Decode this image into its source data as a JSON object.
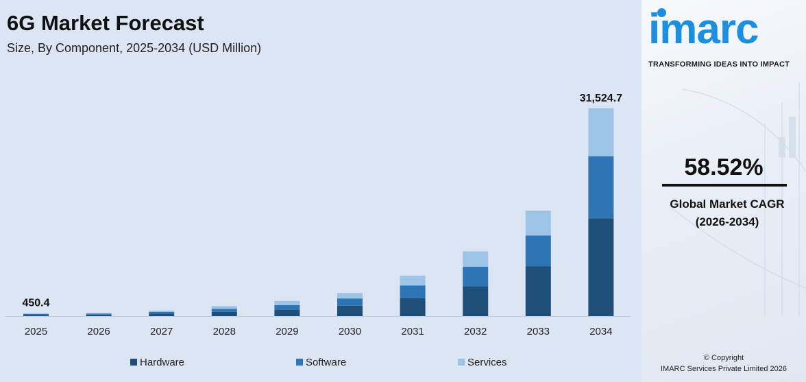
{
  "header": {
    "title": "6G Market Forecast",
    "subtitle": "Size, By Component, 2025-2034 (USD Million)"
  },
  "chart_data": {
    "type": "bar",
    "stacked": true,
    "categories": [
      "2025",
      "2026",
      "2027",
      "2028",
      "2029",
      "2030",
      "2031",
      "2032",
      "2033",
      "2034"
    ],
    "series": [
      {
        "name": "Hardware",
        "color": "#1f4e79",
        "values": [
          190,
          233,
          371,
          636,
          936,
          1568,
          2710,
          4550,
          7544,
          14850
        ]
      },
      {
        "name": "Software",
        "color": "#2e75b6",
        "values": [
          140,
          150,
          258,
          486,
          739,
          1119,
          1950,
          2950,
          4690,
          9390
        ]
      },
      {
        "name": "Services",
        "color": "#9dc3e6",
        "values": [
          120,
          114,
          214,
          399,
          629,
          830,
          1490,
          2330,
          3760,
          7290
        ]
      }
    ],
    "data_labels": [
      {
        "category": "2025",
        "text": "450.4"
      },
      {
        "category": "2034",
        "text": "31,524.7"
      }
    ],
    "legend_position": "bottom",
    "grid": false,
    "ylim": [
      0,
      31524.7
    ]
  },
  "sidebar": {
    "logo": "imarc",
    "tagline": "TRANSFORMING IDEAS INTO IMPACT",
    "cagr_value": "58.52%",
    "cagr_label": "Global Market CAGR",
    "cagr_period": "(2026-2034)",
    "copyright": "© Copyright",
    "company": "IMARC Services Private Limited 2026"
  }
}
